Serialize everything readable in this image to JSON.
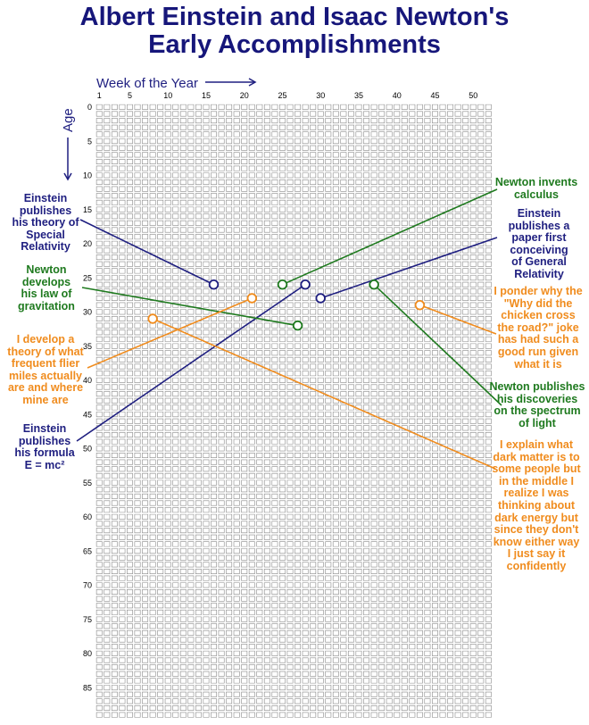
{
  "chart_data": {
    "type": "scatter",
    "title_lines": [
      "Albert Einstein and Isaac Newton's",
      "Early Accomplishments"
    ],
    "xlabel": "Week of the Year",
    "ylabel": "Age",
    "x_ticks": [
      1,
      5,
      10,
      15,
      20,
      25,
      30,
      35,
      40,
      45,
      50
    ],
    "y_ticks": [
      0,
      5,
      10,
      15,
      20,
      25,
      30,
      35,
      40,
      45,
      50,
      55,
      60,
      65,
      70,
      75,
      80,
      85
    ],
    "weeks": 52,
    "ages": 90,
    "colors": {
      "einstein": "#1f1f80",
      "newton": "#1f7a1f",
      "me": "#f08c1e",
      "grid": "#8a8a8a"
    },
    "events": [
      {
        "id": "einstein-special-relativity",
        "person": "einstein",
        "week": 16,
        "age": 26,
        "lines": [
          "Einstein",
          "publishes",
          "his theory of",
          "Special",
          "Relativity"
        ]
      },
      {
        "id": "einstein-emc2",
        "person": "einstein",
        "week": 28,
        "age": 26,
        "lines": [
          "Einstein",
          "publishes",
          "his formula",
          "E = mc²"
        ]
      },
      {
        "id": "einstein-general-relativity",
        "person": "einstein",
        "week": 30,
        "age": 28,
        "lines": [
          "Einstein",
          "publishes a",
          "paper first",
          "conceiving",
          "of General",
          "Relativity"
        ]
      },
      {
        "id": "newton-calculus",
        "person": "newton",
        "week": 25,
        "age": 26,
        "lines": [
          "Newton invents",
          "calculus"
        ]
      },
      {
        "id": "newton-gravitation",
        "person": "newton",
        "week": 27,
        "age": 32,
        "lines": [
          "Newton",
          "develops",
          "his law of",
          "gravitation"
        ]
      },
      {
        "id": "newton-light",
        "person": "newton",
        "week": 37,
        "age": 26,
        "lines": [
          "Newton publishes",
          "his discoveries",
          "on the spectrum",
          "of light"
        ]
      },
      {
        "id": "me-frequent-flier",
        "person": "me",
        "week": 21,
        "age": 28,
        "lines": [
          "I develop a",
          "theory of what",
          "frequent flier",
          "miles actually",
          "are and where",
          "mine are"
        ]
      },
      {
        "id": "me-chicken-joke",
        "person": "me",
        "week": 43,
        "age": 29,
        "lines": [
          "I ponder why the",
          "\"Why did the",
          "chicken cross",
          "the road?\" joke",
          "has had such a",
          "good run given",
          "what it is"
        ]
      },
      {
        "id": "me-dark-matter",
        "person": "me",
        "week": 8,
        "age": 31,
        "lines": [
          "I explain what",
          "dark matter is to",
          "some people but",
          "in the middle I",
          "realize I was",
          "thinking about",
          "dark energy but",
          "since they don't",
          "know either way",
          "I just say it",
          "confidently"
        ]
      }
    ]
  }
}
